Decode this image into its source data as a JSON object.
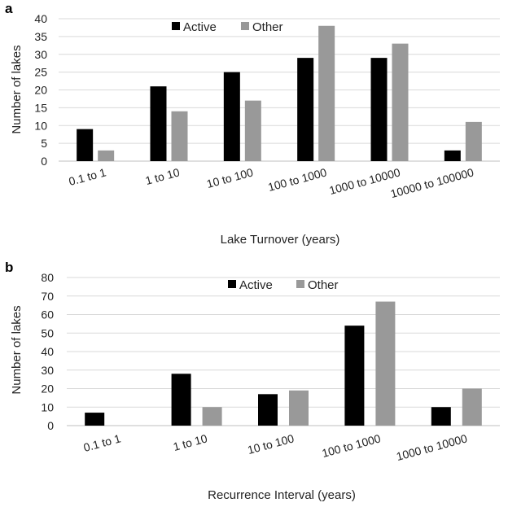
{
  "chart_data": [
    {
      "panel": "a",
      "type": "bar",
      "categories": [
        "0.1 to 1",
        "1 to 10",
        "10 to 100",
        "100 to 1000",
        "1000 to 10000",
        "10000 to 100000"
      ],
      "series": [
        {
          "name": "Active",
          "color": "#000000",
          "values": [
            9,
            21,
            25,
            29,
            29,
            3
          ]
        },
        {
          "name": "Other",
          "color": "#999999",
          "values": [
            3,
            14,
            17,
            38,
            33,
            11
          ]
        }
      ],
      "yticks": [
        0,
        5,
        10,
        15,
        20,
        25,
        30,
        35,
        40
      ],
      "ylim": [
        0,
        40
      ],
      "xlabel": "Lake Turnover (years)",
      "ylabel": "Number of lakes",
      "grid": true,
      "legend": "top-center"
    },
    {
      "panel": "b",
      "type": "bar",
      "categories": [
        "0.1 to 1",
        "1 to 10",
        "10 to 100",
        "100 to 1000",
        "1000 to 10000"
      ],
      "series": [
        {
          "name": "Active",
          "color": "#000000",
          "values": [
            7,
            28,
            17,
            54,
            10
          ]
        },
        {
          "name": "Other",
          "color": "#999999",
          "values": [
            0,
            10,
            19,
            67,
            20
          ]
        }
      ],
      "yticks": [
        0,
        10,
        20,
        30,
        40,
        50,
        60,
        70,
        80
      ],
      "ylim": [
        0,
        80
      ],
      "xlabel": "Recurrence Interval (years)",
      "ylabel": "Number of lakes",
      "grid": true,
      "legend": "top-center"
    }
  ]
}
